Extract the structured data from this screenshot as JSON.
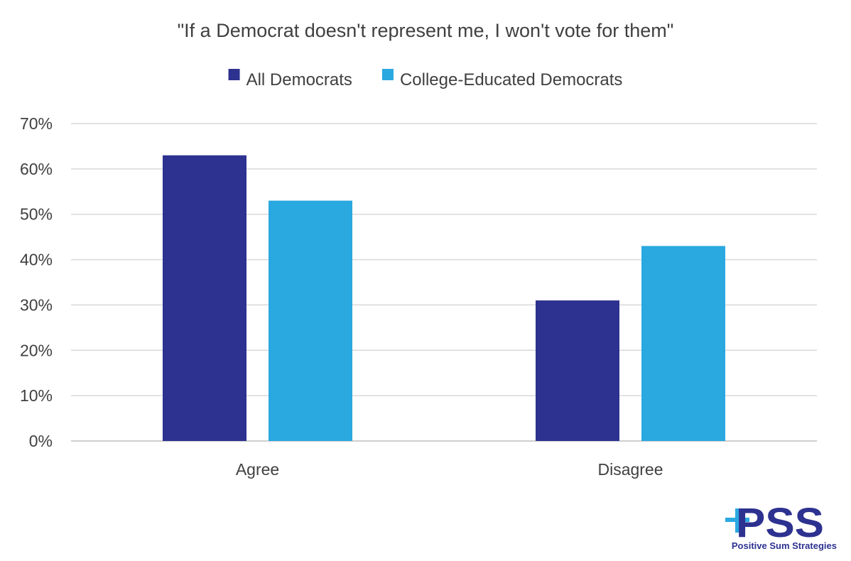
{
  "chart_data": {
    "type": "bar",
    "title": "\"If a Democrat doesn't represent me, I won't vote for them\"",
    "categories": [
      "Agree",
      "Disagree"
    ],
    "series": [
      {
        "name": "All Democrats",
        "values": [
          63,
          31
        ],
        "color": "#2d3290"
      },
      {
        "name": "College-Educated  Democrats",
        "values": [
          53,
          43
        ],
        "color": "#2aa8e0"
      }
    ],
    "ylim": [
      0,
      70
    ],
    "yticks": [
      0,
      10,
      20,
      30,
      40,
      50,
      60,
      70
    ],
    "ytick_suffix": "%",
    "grid": true,
    "legend_position": "top-center",
    "xlabel": "",
    "ylabel": ""
  },
  "logo": {
    "letters": "PSS",
    "tagline": "Positive Sum Strategies",
    "primary_color": "#2d3290",
    "accent_color": "#2aa8e0"
  }
}
